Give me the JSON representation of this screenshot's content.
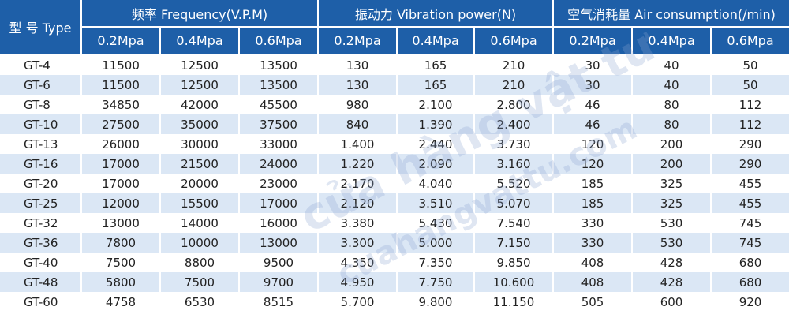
{
  "header": {
    "model": "型 号 Type",
    "groups": [
      "频率 Frequency(V.P.M)",
      "振动力 Vibration power(N)",
      "空气消耗量 Air consumption(/min)"
    ],
    "pressures": [
      "0.2Mpa",
      "0.4Mpa",
      "0.6Mpa",
      "0.2Mpa",
      "0.4Mpa",
      "0.6Mpa",
      "0.2Mpa",
      "0.4Mpa",
      "0.6Mpa"
    ]
  },
  "rows": [
    {
      "model": "GT-4",
      "values": [
        "11500",
        "12500",
        "13500",
        "130",
        "165",
        "210",
        "30",
        "40",
        "50"
      ]
    },
    {
      "model": "GT-6",
      "values": [
        "11500",
        "12500",
        "13500",
        "130",
        "165",
        "210",
        "30",
        "40",
        "50"
      ]
    },
    {
      "model": "GT-8",
      "values": [
        "34850",
        "42000",
        "45500",
        "980",
        "2.100",
        "2.800",
        "46",
        "80",
        "112"
      ]
    },
    {
      "model": "GT-10",
      "values": [
        "27500",
        "35000",
        "37500",
        "840",
        "1.390",
        "2.400",
        "46",
        "80",
        "112"
      ]
    },
    {
      "model": "GT-13",
      "values": [
        "26000",
        "30000",
        "33000",
        "1.400",
        "2.440",
        "3.730",
        "120",
        "200",
        "290"
      ]
    },
    {
      "model": "GT-16",
      "values": [
        "17000",
        "21500",
        "24000",
        "1.220",
        "2.090",
        "3.160",
        "120",
        "200",
        "290"
      ]
    },
    {
      "model": "GT-20",
      "values": [
        "17000",
        "20000",
        "23000",
        "2.170",
        "4.040",
        "5.520",
        "185",
        "325",
        "455"
      ]
    },
    {
      "model": "GT-25",
      "values": [
        "12000",
        "15500",
        "17000",
        "2.120",
        "3.510",
        "5.070",
        "185",
        "325",
        "455"
      ]
    },
    {
      "model": "GT-32",
      "values": [
        "13000",
        "14000",
        "16000",
        "3.380",
        "5.430",
        "7.540",
        "330",
        "530",
        "745"
      ]
    },
    {
      "model": "GT-36",
      "values": [
        "7800",
        "10000",
        "13000",
        "3.300",
        "5.000",
        "7.150",
        "330",
        "530",
        "745"
      ]
    },
    {
      "model": "GT-40",
      "values": [
        "7500",
        "8800",
        "9500",
        "4.350",
        "7.350",
        "9.850",
        "408",
        "428",
        "680"
      ]
    },
    {
      "model": "GT-48",
      "values": [
        "5800",
        "7500",
        "9700",
        "4.950",
        "7.750",
        "10.600",
        "408",
        "428",
        "680"
      ]
    },
    {
      "model": "GT-60",
      "values": [
        "4758",
        "6530",
        "8515",
        "5.700",
        "9.800",
        "11.150",
        "505",
        "600",
        "920"
      ]
    }
  ],
  "watermark": {
    "line1": "cửa hàng vật tư",
    "line2": "cuahangvattu.com"
  },
  "colors": {
    "header_bg": "#1e5fa8",
    "stripe_bg": "#dbe7f5"
  }
}
